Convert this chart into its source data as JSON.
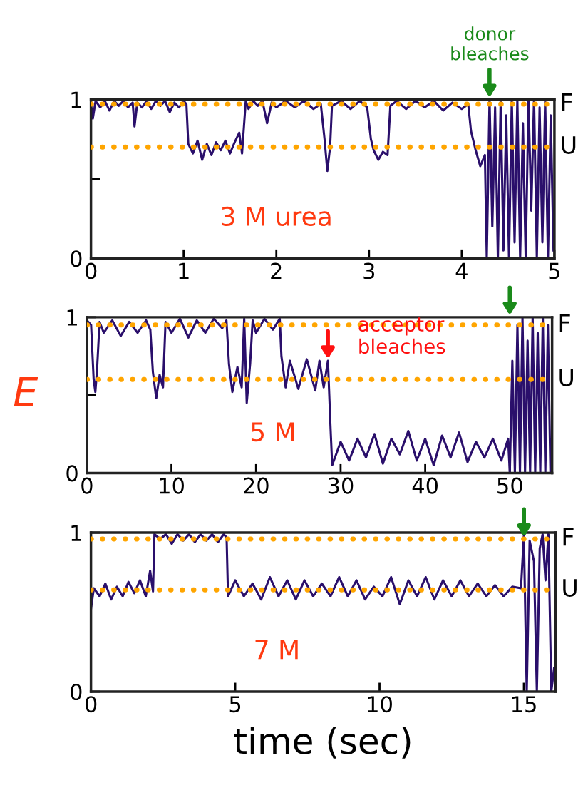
{
  "chart_data": [
    {
      "type": "line",
      "xlim": [
        0,
        5
      ],
      "xticks": [
        0,
        1,
        2,
        3,
        4,
        5
      ],
      "ylim": [
        0,
        1
      ],
      "yticks": [
        0,
        {
          "value": 0.5,
          "label": null
        },
        1
      ],
      "grid": false,
      "legend": false,
      "series": [
        {
          "color": "#2a0f6b",
          "x": [
            0,
            0.02,
            0.05,
            0.1,
            0.15,
            0.2,
            0.25,
            0.3,
            0.35,
            0.4,
            0.45,
            0.47,
            0.5,
            0.55,
            0.6,
            0.65,
            0.7,
            0.75,
            0.8,
            0.85,
            0.9,
            0.95,
            1.0,
            1.03,
            1.05,
            1.1,
            1.15,
            1.2,
            1.25,
            1.3,
            1.35,
            1.4,
            1.45,
            1.5,
            1.55,
            1.6,
            1.63,
            1.67,
            1.7,
            1.75,
            1.8,
            1.85,
            1.9,
            1.95,
            2.0,
            2.1,
            2.2,
            2.3,
            2.4,
            2.48,
            2.52,
            2.55,
            2.58,
            2.6,
            2.7,
            2.8,
            2.9,
            2.98,
            3.02,
            3.05,
            3.1,
            3.15,
            3.2,
            3.23,
            3.3,
            3.4,
            3.5,
            3.6,
            3.7,
            3.8,
            3.9,
            4.0,
            4.07,
            4.1,
            4.15,
            4.2,
            4.25,
            4.27,
            4.3,
            4.33,
            4.36,
            4.39,
            4.42,
            4.45,
            4.48,
            4.51,
            4.54,
            4.57,
            4.6,
            4.63,
            4.66,
            4.69,
            4.72,
            4.75,
            4.78,
            4.81,
            4.84,
            4.87,
            4.9,
            4.93,
            4.96,
            4.99
          ],
          "values": [
            0.97,
            0.88,
            0.99,
            0.95,
            0.99,
            0.93,
            0.99,
            0.96,
            0.99,
            0.95,
            0.98,
            0.83,
            0.98,
            0.95,
            0.99,
            0.94,
            0.99,
            0.96,
            0.99,
            0.92,
            0.98,
            0.95,
            0.99,
            0.97,
            0.72,
            0.66,
            0.74,
            0.62,
            0.72,
            0.65,
            0.73,
            0.68,
            0.74,
            0.66,
            0.73,
            0.79,
            0.66,
            0.99,
            0.94,
            0.99,
            0.96,
            0.99,
            0.85,
            0.98,
            0.95,
            0.99,
            0.95,
            0.99,
            0.94,
            0.97,
            0.75,
            0.55,
            0.7,
            0.96,
            0.99,
            0.94,
            0.99,
            0.95,
            0.75,
            0.68,
            0.62,
            0.67,
            0.65,
            0.96,
            0.99,
            0.94,
            0.99,
            0.95,
            0.99,
            0.93,
            0.98,
            0.94,
            0.97,
            0.8,
            0.68,
            0.58,
            0.65,
            0.0,
            1.0,
            0.2,
            0.95,
            0.0,
            1.0,
            0.05,
            0.9,
            0.0,
            1.0,
            0.1,
            1.0,
            0.0,
            0.85,
            0.0,
            1.0,
            0.3,
            1.0,
            0.0,
            0.95,
            0.1,
            1.0,
            0.0,
            0.9,
            0.05
          ]
        }
      ],
      "ref_lines": [
        {
          "axis": "y",
          "value": 0.97,
          "label": "F",
          "color": "#ffa500",
          "line_style": "dotted"
        },
        {
          "axis": "y",
          "value": 0.7,
          "label": "U",
          "color": "#ffa500",
          "line_style": "dotted"
        }
      ],
      "annotations": [
        "3 M urea",
        {
          "text": "donor bleaches",
          "x": 4.3,
          "y": 1.0
        }
      ]
    },
    {
      "type": "line",
      "xlim": [
        0,
        55
      ],
      "xticks": [
        0,
        10,
        20,
        30,
        40,
        50
      ],
      "ylim": [
        0,
        1
      ],
      "yticks": [
        0,
        {
          "value": 0.5,
          "label": null
        },
        1
      ],
      "grid": false,
      "legend": false,
      "ylabel": "E",
      "series": [
        {
          "color": "#2a0f6b",
          "x": [
            0,
            0.5,
            0.8,
            1.0,
            1.2,
            1.5,
            2,
            3,
            4,
            5,
            6,
            7,
            7.5,
            7.8,
            8.2,
            8.6,
            9,
            9.3,
            10,
            11,
            12,
            13,
            14,
            15,
            16,
            16.5,
            16.8,
            17.2,
            17.8,
            18.3,
            18.6,
            18.9,
            19.3,
            19.6,
            20,
            21,
            22,
            22.8,
            23,
            23.5,
            24,
            25,
            26,
            27,
            27.5,
            28,
            28.5,
            28.8,
            29,
            30,
            31,
            32,
            33,
            34,
            35,
            36,
            37,
            38,
            39,
            40,
            41,
            42,
            43,
            44,
            45,
            46,
            47,
            48,
            49,
            49.8,
            50,
            50.3,
            50.6,
            50.9,
            51.2,
            51.5,
            51.8,
            52.1,
            52.4,
            52.7,
            53,
            53.3,
            53.6,
            53.9,
            54.2,
            54.5,
            54.8
          ],
          "values": [
            0.98,
            0.95,
            0.6,
            0.52,
            0.66,
            0.97,
            0.9,
            0.98,
            0.88,
            0.97,
            0.9,
            0.98,
            0.92,
            0.65,
            0.48,
            0.63,
            0.55,
            0.97,
            0.9,
            0.99,
            0.87,
            0.98,
            0.9,
            0.99,
            0.93,
            0.98,
            0.7,
            0.52,
            0.68,
            0.55,
            0.99,
            0.45,
            0.7,
            0.98,
            0.9,
            0.99,
            0.92,
            0.99,
            0.75,
            0.55,
            0.72,
            0.54,
            0.73,
            0.53,
            0.72,
            0.55,
            0.72,
            0.3,
            0.05,
            0.2,
            0.08,
            0.22,
            0.1,
            0.25,
            0.06,
            0.22,
            0.12,
            0.27,
            0.08,
            0.22,
            0.05,
            0.24,
            0.1,
            0.26,
            0.07,
            0.2,
            0.1,
            0.22,
            0.08,
            0.22,
            0.0,
            0.72,
            0.0,
            0.95,
            0.0,
            1.0,
            0.0,
            0.85,
            0.0,
            1.0,
            0.0,
            0.9,
            0.0,
            1.0,
            0.0,
            0.95,
            0.0
          ]
        }
      ],
      "ref_lines": [
        {
          "axis": "y",
          "value": 0.95,
          "label": "F",
          "color": "#ffa500",
          "line_style": "dotted"
        },
        {
          "axis": "y",
          "value": 0.6,
          "label": "U",
          "color": "#ffa500",
          "line_style": "dotted"
        }
      ],
      "annotations": [
        "5 M",
        {
          "text": "acceptor bleaches",
          "x": 28.5,
          "y": 0.72
        }
      ]
    },
    {
      "type": "line",
      "xlim": [
        0,
        16.1
      ],
      "xticks": [
        0,
        5,
        10,
        15
      ],
      "ylim": [
        0,
        1
      ],
      "yticks": [
        0,
        1
      ],
      "grid": false,
      "legend": false,
      "xlabel": "time (sec)",
      "series": [
        {
          "color": "#2a0f6b",
          "x": [
            0,
            0.1,
            0.3,
            0.5,
            0.7,
            0.9,
            1.1,
            1.3,
            1.5,
            1.7,
            1.9,
            2.05,
            2.15,
            2.2,
            2.4,
            2.6,
            2.8,
            3.0,
            3.2,
            3.4,
            3.6,
            3.8,
            4.0,
            4.2,
            4.4,
            4.6,
            4.7,
            4.75,
            5.0,
            5.3,
            5.6,
            5.9,
            6.2,
            6.5,
            6.8,
            7.1,
            7.4,
            7.7,
            8.0,
            8.3,
            8.6,
            8.9,
            9.2,
            9.5,
            9.8,
            10.1,
            10.4,
            10.7,
            11.0,
            11.3,
            11.6,
            11.9,
            12.2,
            12.5,
            12.8,
            13.1,
            13.4,
            13.7,
            14.0,
            14.3,
            14.6,
            14.9,
            15.0,
            15.1,
            15.2,
            15.35,
            15.45,
            15.55,
            15.65,
            15.75,
            15.85,
            15.95,
            16.05
          ],
          "values": [
            0.52,
            0.65,
            0.6,
            0.68,
            0.58,
            0.66,
            0.6,
            0.69,
            0.62,
            0.7,
            0.6,
            0.76,
            0.63,
            0.99,
            0.96,
            0.99,
            0.93,
            0.99,
            0.95,
            0.99,
            0.94,
            0.99,
            0.95,
            0.99,
            0.94,
            0.99,
            0.97,
            0.6,
            0.7,
            0.6,
            0.68,
            0.58,
            0.72,
            0.6,
            0.7,
            0.58,
            0.7,
            0.6,
            0.68,
            0.6,
            0.72,
            0.6,
            0.7,
            0.58,
            0.66,
            0.6,
            0.72,
            0.55,
            0.7,
            0.6,
            0.72,
            0.58,
            0.7,
            0.6,
            0.7,
            0.6,
            0.68,
            0.6,
            0.67,
            0.6,
            0.66,
            0.65,
            0.98,
            0.0,
            0.95,
            0.82,
            0.0,
            0.9,
            0.99,
            0.7,
            0.99,
            0.0,
            0.15
          ]
        }
      ],
      "ref_lines": [
        {
          "axis": "y",
          "value": 0.96,
          "label": "F",
          "color": "#ffa500",
          "line_style": "dotted"
        },
        {
          "axis": "y",
          "value": 0.64,
          "label": "U",
          "color": "#ffa500",
          "line_style": "dotted"
        }
      ],
      "annotations": [
        "7 M"
      ]
    }
  ]
}
